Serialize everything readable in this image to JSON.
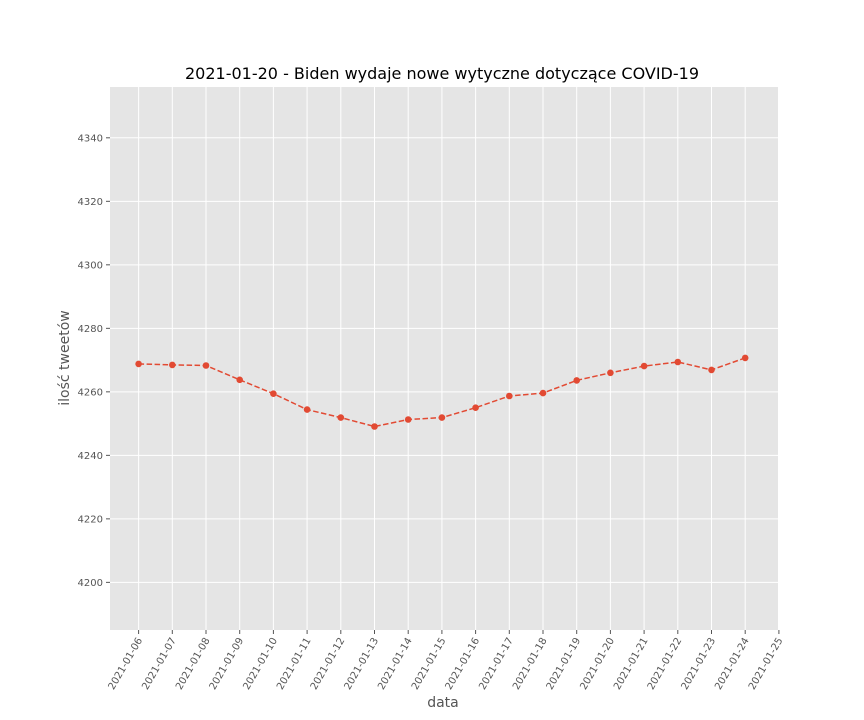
{
  "chart_data": {
    "type": "line",
    "title": "2021-01-20 - Biden wydaje nowe wytyczne dotyczące COVID-19",
    "xlabel": "data",
    "ylabel": "ilość tweetów",
    "x_ticks": [
      "2021-01-06",
      "2021-01-07",
      "2021-01-08",
      "2021-01-09",
      "2021-01-10",
      "2021-01-11",
      "2021-01-12",
      "2021-01-13",
      "2021-01-14",
      "2021-01-15",
      "2021-01-16",
      "2021-01-17",
      "2021-01-18",
      "2021-01-19",
      "2021-01-20",
      "2021-01-21",
      "2021-01-22",
      "2021-01-23",
      "2021-01-24",
      "2021-01-25"
    ],
    "y_ticks": [
      4200,
      4220,
      4240,
      4260,
      4280,
      4300,
      4320,
      4340
    ],
    "ylim": [
      4185,
      4356
    ],
    "grid": true,
    "series": [
      {
        "color": "#e24a33",
        "line_style": "dashed",
        "marker": "circle",
        "x": [
          "2021-01-06",
          "2021-01-07",
          "2021-01-08",
          "2021-01-09",
          "2021-01-10",
          "2021-01-11",
          "2021-01-12",
          "2021-01-13",
          "2021-01-14",
          "2021-01-15",
          "2021-01-16",
          "2021-01-17",
          "2021-01-18",
          "2021-01-19",
          "2021-01-20",
          "2021-01-21",
          "2021-01-22",
          "2021-01-23",
          "2021-01-24"
        ],
        "values": [
          4268.8,
          4268.5,
          4268.3,
          4263.8,
          4259.4,
          4254.4,
          4251.9,
          4249.1,
          4251.3,
          4251.9,
          4255.0,
          4258.7,
          4259.6,
          4263.6,
          4266.0,
          4268.1,
          4269.4,
          4266.9,
          4270.7
        ]
      }
    ]
  }
}
